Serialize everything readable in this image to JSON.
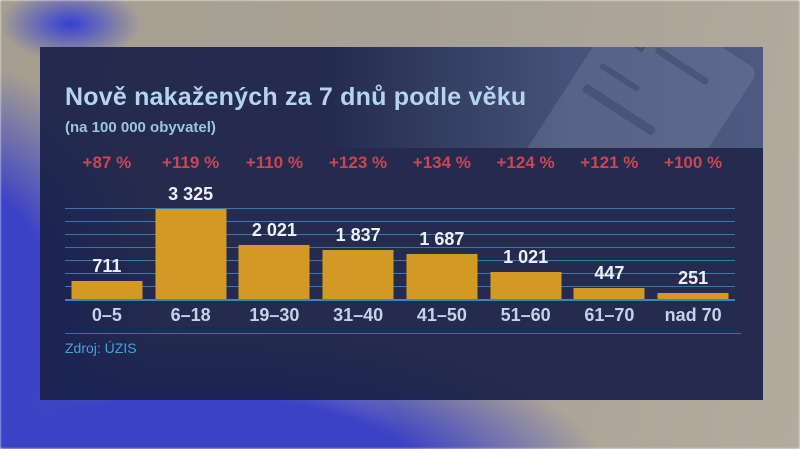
{
  "header": {
    "title": "Nově nakažených za 7 dnů podle věku",
    "subtitle": "(na 100 000 obyvatel)"
  },
  "source": {
    "label": "Zdroj: ÚZIS"
  },
  "colors": {
    "panel_navy": "#1a2148",
    "bar_gold": "#d29a24",
    "pct_red": "#cf4450",
    "grid_cyan": "#4294d0",
    "title_blue": "#b3d5ef",
    "source_cyan": "#41a4da",
    "background_blue_glove": "#3b42c5"
  },
  "chart_data": {
    "type": "bar",
    "title": "Nově nakažených za 7 dnů podle věku",
    "subtitle": "(na 100 000 obyvatel)",
    "categories": [
      "0–5",
      "6–18",
      "19–30",
      "31–40",
      "41–50",
      "51–60",
      "61–70",
      "nad 70"
    ],
    "values": [
      711,
      3325,
      2021,
      1837,
      1687,
      1021,
      447,
      251
    ],
    "value_labels": [
      "711",
      "3 325",
      "2 021",
      "1 837",
      "1 687",
      "1 021",
      "447",
      "251"
    ],
    "pct_changes": [
      "+87 %",
      "+119 %",
      "+110 %",
      "+123 %",
      "+134 %",
      "+124 %",
      "+121 %",
      "+100 %"
    ],
    "xlabel": "",
    "ylabel": "",
    "ylim": [
      0,
      3325
    ],
    "gridline_count": 7,
    "grid": true,
    "legend": false,
    "source": "Zdroj: ÚZIS"
  }
}
